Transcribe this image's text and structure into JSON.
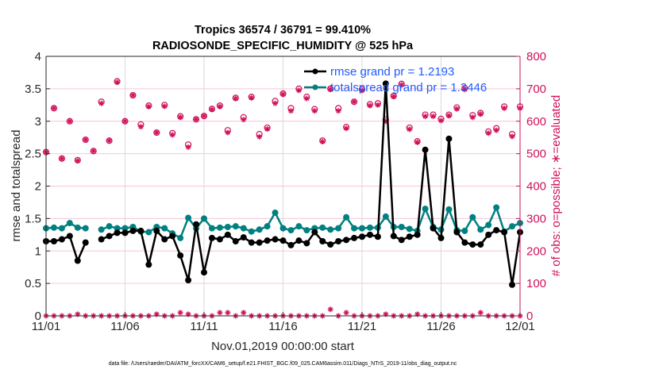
{
  "chart_data": {
    "type": "line",
    "title": [
      "Tropics 36574 / 36791 = 99.410%",
      "RADIOSONDE_SPECIFIC_HUMIDITY @ 525 hPa"
    ],
    "xlabel": "Nov.01,2019 00:00:00 start",
    "ylabel": "rmse and totalspread",
    "ylabel_right": "# of obs: o=possible; ∗=evaluated",
    "footnote": "data file: /Users/raeder/DAI/ATM_forcXX/CAM6_setup/f.e21.FHIST_BGC.f09_025.CAM6assim.011/Diags_NTrS_2019-11/obs_diag_output.nc",
    "x_tick_labels": [
      "11/01",
      "11/06",
      "11/11",
      "11/16",
      "11/21",
      "11/26",
      "12/01"
    ],
    "x_range_days": [
      0,
      30
    ],
    "ylim": [
      0,
      4
    ],
    "y_ticks": [
      "0",
      "0.5",
      "1",
      "1.5",
      "2",
      "2.5",
      "3",
      "3.5",
      "4"
    ],
    "ylim_right": [
      0,
      800
    ],
    "y_ticks_right": [
      "0",
      "100",
      "200",
      "300",
      "400",
      "500",
      "600",
      "700",
      "800"
    ],
    "grid": true,
    "legend_position": "top-right",
    "legend": [
      {
        "label": "rmse grand pr = 1.2193",
        "color": "#000000"
      },
      {
        "label": "totalspread grand pr = 1.3446",
        "color": "#008080"
      }
    ],
    "colors": {
      "rmse": "#000000",
      "spread": "#008080",
      "obs": "#d0115a",
      "legend_text": "#1f5cff"
    },
    "x_step_days": 0.5,
    "series": [
      {
        "name": "rmse",
        "values": [
          1.15,
          1.15,
          1.18,
          1.23,
          0.85,
          1.13,
          null,
          1.18,
          1.23,
          1.28,
          1.28,
          1.31,
          1.31,
          0.79,
          1.31,
          1.18,
          1.23,
          0.93,
          0.55,
          1.41,
          0.67,
          1.2,
          1.18,
          1.25,
          1.15,
          1.21,
          1.13,
          1.13,
          1.16,
          1.18,
          1.16,
          1.09,
          1.16,
          1.12,
          1.29,
          1.15,
          1.1,
          1.15,
          1.17,
          1.2,
          1.22,
          1.25,
          1.22,
          3.58,
          1.23,
          1.17,
          1.22,
          1.25,
          2.56,
          1.35,
          1.2,
          2.73,
          1.29,
          1.13,
          1.1,
          1.1,
          1.25,
          1.32,
          1.29,
          0.48,
          1.29
        ],
        "marker": "filled-circle-star"
      },
      {
        "name": "totalspread",
        "values": [
          1.35,
          1.36,
          1.35,
          1.43,
          1.36,
          1.35,
          null,
          1.33,
          1.38,
          1.35,
          1.35,
          1.37,
          1.3,
          1.29,
          1.37,
          1.35,
          1.27,
          1.2,
          1.51,
          1.35,
          1.5,
          1.35,
          1.36,
          1.37,
          1.38,
          1.35,
          1.3,
          1.33,
          1.38,
          1.59,
          1.35,
          1.32,
          1.38,
          1.32,
          1.35,
          1.36,
          1.33,
          1.35,
          1.52,
          1.35,
          1.35,
          1.36,
          1.36,
          1.53,
          1.37,
          1.37,
          1.34,
          1.31,
          1.65,
          1.37,
          1.33,
          1.64,
          1.32,
          1.31,
          1.52,
          1.33,
          1.4,
          1.67,
          1.3,
          1.38,
          1.43
        ],
        "marker": "filled-circle"
      },
      {
        "name": "obs_possible",
        "axis": "right",
        "values": [
          505,
          640,
          485,
          600,
          480,
          543,
          508,
          660,
          540,
          723,
          600,
          680,
          590,
          648,
          565,
          650,
          563,
          615,
          528,
          606,
          616,
          638,
          648,
          572,
          672,
          612,
          675,
          560,
          580,
          662,
          685,
          640,
          700,
          675,
          637,
          540,
          700,
          640,
          582,
          660,
          698,
          652,
          655,
          605,
          678,
          715,
          580,
          538,
          620,
          620,
          607,
          620,
          642,
          702,
          618,
          625,
          568,
          578,
          645,
          560,
          645
        ],
        "marker": "open-circle"
      },
      {
        "name": "obs_evaluated",
        "axis": "right",
        "values": [
          505,
          640,
          485,
          600,
          478,
          543,
          508,
          655,
          540,
          720,
          600,
          680,
          583,
          645,
          565,
          646,
          558,
          612,
          520,
          606,
          616,
          636,
          645,
          565,
          670,
          605,
          672,
          552,
          576,
          655,
          683,
          632,
          695,
          670,
          632,
          537,
          698,
          632,
          578,
          660,
          695,
          648,
          650,
          600,
          676,
          712,
          575,
          535,
          615,
          615,
          602,
          617,
          638,
          698,
          612,
          622,
          563,
          572,
          640,
          553,
          640
        ],
        "marker": "star"
      },
      {
        "name": "obs_rejected_possible",
        "axis": "right",
        "values": [
          0,
          0,
          0,
          0,
          5,
          0,
          0,
          0,
          0,
          0,
          0,
          0,
          0,
          0,
          5,
          0,
          0,
          10,
          5,
          0,
          0,
          0,
          10,
          10,
          0,
          10,
          0,
          0,
          0,
          0,
          0,
          0,
          0,
          0,
          0,
          0,
          20,
          0,
          10,
          0,
          0,
          0,
          0,
          5,
          0,
          0,
          0,
          5,
          0,
          0,
          0,
          0,
          0,
          0,
          0,
          10,
          0,
          0,
          0,
          0,
          0
        ],
        "marker": "star"
      }
    ]
  }
}
